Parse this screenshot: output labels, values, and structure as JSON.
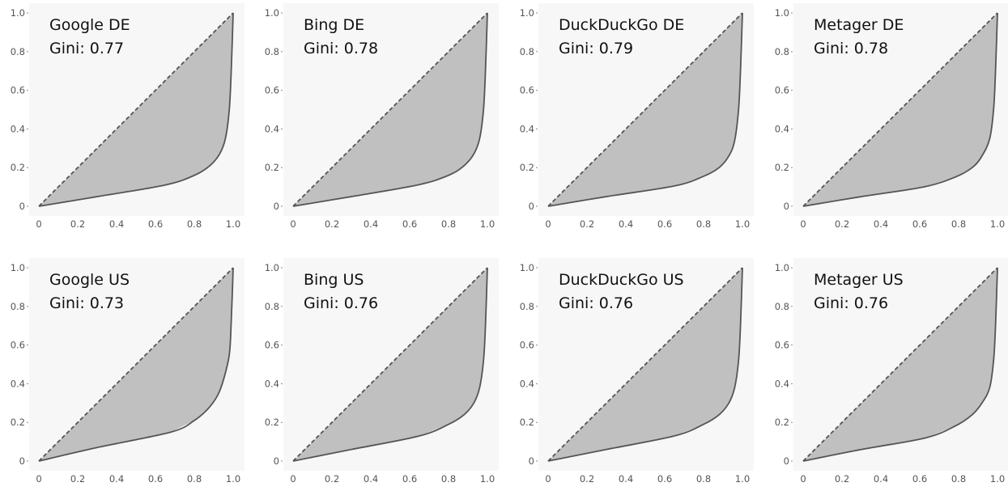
{
  "chart_data": [
    {
      "type": "area",
      "title": "Google DE",
      "gini_label": "Gini: 0.77",
      "xlim": [
        0,
        1
      ],
      "ylim": [
        0,
        1
      ],
      "x_tick_labels": [
        "0",
        "0.2",
        "0.4",
        "0.6",
        "0.8",
        "1.0"
      ],
      "y_tick_labels": [
        "0",
        "0.2",
        "0.4",
        "0.6",
        "0.8",
        "1.0"
      ],
      "grid": false,
      "series": [
        {
          "x": [
            0,
            1
          ],
          "y": [
            0,
            1
          ],
          "style": "dashed"
        },
        {
          "x": [
            0,
            0.3,
            0.65,
            0.8,
            0.88,
            0.93,
            0.96,
            0.98,
            0.99,
            1.0
          ],
          "y": [
            0,
            0.05,
            0.11,
            0.16,
            0.21,
            0.27,
            0.35,
            0.5,
            0.7,
            1.0
          ]
        }
      ]
    },
    {
      "type": "area",
      "title": "Bing DE",
      "gini_label": "Gini: 0.78",
      "xlim": [
        0,
        1
      ],
      "ylim": [
        0,
        1
      ],
      "x_tick_labels": [
        "0",
        "0.2",
        "0.4",
        "0.6",
        "0.8",
        "1.0"
      ],
      "y_tick_labels": [
        "0",
        "0.2",
        "0.4",
        "0.6",
        "0.8",
        "1.0"
      ],
      "grid": false,
      "series": [
        {
          "x": [
            0,
            1
          ],
          "y": [
            0,
            1
          ],
          "style": "dashed"
        },
        {
          "x": [
            0,
            0.3,
            0.64,
            0.8,
            0.88,
            0.93,
            0.96,
            0.98,
            0.99,
            1.0
          ],
          "y": [
            0,
            0.05,
            0.11,
            0.16,
            0.21,
            0.27,
            0.35,
            0.5,
            0.7,
            1.0
          ]
        }
      ]
    },
    {
      "type": "area",
      "title": "DuckDuckGo DE",
      "gini_label": "Gini: 0.79",
      "xlim": [
        0,
        1
      ],
      "ylim": [
        0,
        1
      ],
      "x_tick_labels": [
        "0",
        "0.2",
        "0.4",
        "0.6",
        "0.8",
        "1.0"
      ],
      "y_tick_labels": [
        "0",
        "0.2",
        "0.4",
        "0.6",
        "0.8",
        "1.0"
      ],
      "grid": false,
      "series": [
        {
          "x": [
            0,
            1
          ],
          "y": [
            0,
            1
          ],
          "style": "dashed"
        },
        {
          "x": [
            0,
            0.3,
            0.65,
            0.8,
            0.88,
            0.93,
            0.96,
            0.98,
            0.99,
            1.0
          ],
          "y": [
            0,
            0.05,
            0.105,
            0.155,
            0.2,
            0.26,
            0.34,
            0.5,
            0.7,
            1.0
          ]
        }
      ]
    },
    {
      "type": "area",
      "title": "Metager DE",
      "gini_label": "Gini: 0.78",
      "xlim": [
        0,
        1
      ],
      "ylim": [
        0,
        1
      ],
      "x_tick_labels": [
        "0",
        "0.2",
        "0.4",
        "0.6",
        "0.8",
        "1.0"
      ],
      "y_tick_labels": [
        "0",
        "0.2",
        "0.4",
        "0.6",
        "0.8",
        "1.0"
      ],
      "grid": false,
      "series": [
        {
          "x": [
            0,
            1
          ],
          "y": [
            0,
            1
          ],
          "style": "dashed"
        },
        {
          "x": [
            0,
            0.3,
            0.62,
            0.78,
            0.87,
            0.92,
            0.96,
            0.98,
            0.99,
            1.0
          ],
          "y": [
            0,
            0.05,
            0.1,
            0.15,
            0.2,
            0.26,
            0.35,
            0.5,
            0.7,
            1.0
          ]
        }
      ]
    },
    {
      "type": "area",
      "title": "Google US",
      "gini_label": "Gini: 0.73",
      "xlim": [
        0,
        1
      ],
      "ylim": [
        0,
        1
      ],
      "x_tick_labels": [
        "0",
        "0.2",
        "0.4",
        "0.6",
        "0.8",
        "1.0"
      ],
      "y_tick_labels": [
        "0",
        "0.2",
        "0.4",
        "0.6",
        "0.8",
        "1.0"
      ],
      "grid": false,
      "series": [
        {
          "x": [
            0,
            1
          ],
          "y": [
            0,
            1
          ],
          "style": "dashed"
        },
        {
          "x": [
            0,
            0.3,
            0.68,
            0.8,
            0.87,
            0.92,
            0.95,
            0.98,
            0.99,
            1.0
          ],
          "y": [
            0,
            0.07,
            0.15,
            0.21,
            0.27,
            0.34,
            0.42,
            0.55,
            0.72,
            1.0
          ]
        }
      ]
    },
    {
      "type": "area",
      "title": "Bing US",
      "gini_label": "Gini: 0.76",
      "xlim": [
        0,
        1
      ],
      "ylim": [
        0,
        1
      ],
      "x_tick_labels": [
        "0",
        "0.2",
        "0.4",
        "0.6",
        "0.8",
        "1.0"
      ],
      "y_tick_labels": [
        "0",
        "0.2",
        "0.4",
        "0.6",
        "0.8",
        "1.0"
      ],
      "grid": false,
      "series": [
        {
          "x": [
            0,
            1
          ],
          "y": [
            0,
            1
          ],
          "style": "dashed"
        },
        {
          "x": [
            0,
            0.3,
            0.65,
            0.8,
            0.88,
            0.93,
            0.96,
            0.98,
            0.99,
            1.0
          ],
          "y": [
            0,
            0.06,
            0.13,
            0.19,
            0.24,
            0.3,
            0.38,
            0.52,
            0.7,
            1.0
          ]
        }
      ]
    },
    {
      "type": "area",
      "title": "DuckDuckGo US",
      "gini_label": "Gini: 0.76",
      "xlim": [
        0,
        1
      ],
      "ylim": [
        0,
        1
      ],
      "x_tick_labels": [
        "0",
        "0.2",
        "0.4",
        "0.6",
        "0.8",
        "1.0"
      ],
      "y_tick_labels": [
        "0",
        "0.2",
        "0.4",
        "0.6",
        "0.8",
        "1.0"
      ],
      "grid": false,
      "series": [
        {
          "x": [
            0,
            1
          ],
          "y": [
            0,
            1
          ],
          "style": "dashed"
        },
        {
          "x": [
            0,
            0.3,
            0.65,
            0.8,
            0.88,
            0.93,
            0.96,
            0.98,
            0.99,
            1.0
          ],
          "y": [
            0,
            0.06,
            0.13,
            0.19,
            0.24,
            0.3,
            0.38,
            0.52,
            0.7,
            1.0
          ]
        }
      ]
    },
    {
      "type": "area",
      "title": "Metager US",
      "gini_label": "Gini: 0.76",
      "xlim": [
        0,
        1
      ],
      "ylim": [
        0,
        1
      ],
      "x_tick_labels": [
        "0",
        "0.2",
        "0.4",
        "0.6",
        "0.8",
        "1.0"
      ],
      "y_tick_labels": [
        "0",
        "0.2",
        "0.4",
        "0.6",
        "0.8",
        "1.0"
      ],
      "grid": false,
      "series": [
        {
          "x": [
            0,
            1
          ],
          "y": [
            0,
            1
          ],
          "style": "dashed"
        },
        {
          "x": [
            0,
            0.3,
            0.63,
            0.78,
            0.87,
            0.92,
            0.96,
            0.98,
            0.99,
            1.0
          ],
          "y": [
            0,
            0.06,
            0.12,
            0.18,
            0.24,
            0.3,
            0.38,
            0.52,
            0.7,
            1.0
          ]
        }
      ]
    }
  ],
  "colors": {
    "plot_background": "#f7f7f7",
    "fill": "#c0c0c0",
    "curve": "#555555",
    "equality_line": "#555555",
    "tick_text": "#555555",
    "panel_text": "#111111"
  }
}
